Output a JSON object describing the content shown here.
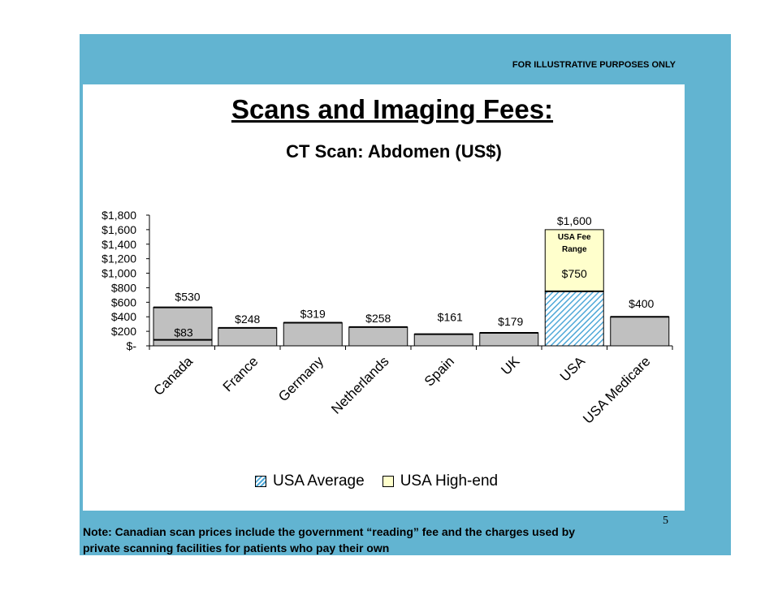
{
  "header": {
    "disclaimer": "FOR ILLUSTRATIVE PURPOSES ONLY",
    "title": "Scans and Imaging Fees:",
    "subtitle": "CT Scan: Abdomen (US$)"
  },
  "legend": {
    "items": [
      {
        "label": "USA Average"
      },
      {
        "label": "USA High-end"
      }
    ]
  },
  "footer": {
    "note": "Note: Canadian scan prices include the government “reading” fee and the charges used by private scanning facilities for patients who pay their own",
    "page_number": "5"
  },
  "colors": {
    "frame": "#62b4d1",
    "bar_fill": "#c0c0c0",
    "usa_avg_hatch": "#4fa8d8",
    "usa_high_fill": "#ffffcc"
  },
  "chart_data": {
    "type": "bar",
    "title": "Scans and Imaging Fees:",
    "subtitle": "CT Scan: Abdomen (US$)",
    "ylim": [
      0,
      1800
    ],
    "y_ticks": [
      0,
      200,
      400,
      600,
      800,
      1000,
      1200,
      1400,
      1600,
      1800
    ],
    "y_tick_labels": [
      "$-",
      "$200",
      "$400",
      "$600",
      "$800",
      "$1,000",
      "$1,200",
      "$1,400",
      "$1,600",
      "$1,800"
    ],
    "categories": [
      "Canada",
      "France",
      "Germany",
      "Netherlands",
      "Spain",
      "UK",
      "USA",
      "USA Medicare"
    ],
    "values": [
      530,
      248,
      319,
      258,
      161,
      179,
      750,
      400
    ],
    "value_labels": [
      "$530",
      "$248",
      "$319",
      "$258",
      "$161",
      "$179",
      "$750",
      "$400"
    ],
    "canada_low": {
      "value": 83,
      "label": "$83"
    },
    "usa_range": {
      "average": 750,
      "high_end": 1600,
      "label": "$1,600",
      "range_label_line1": "USA Fee",
      "range_label_line2": "Range"
    },
    "series": [
      {
        "name": "USA Average",
        "values": [
          null,
          null,
          null,
          null,
          null,
          null,
          750,
          null
        ]
      },
      {
        "name": "USA High-end",
        "values": [
          null,
          null,
          null,
          null,
          null,
          null,
          1600,
          null
        ]
      }
    ],
    "grid": false,
    "legend_position": "bottom"
  }
}
